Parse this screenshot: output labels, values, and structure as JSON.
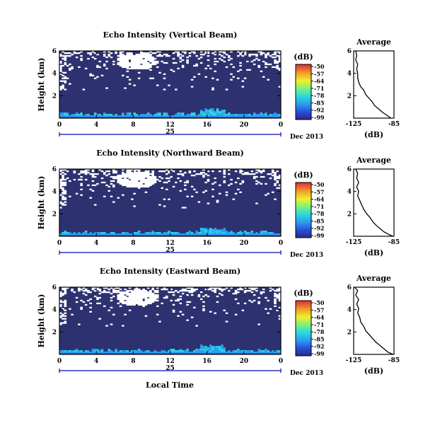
{
  "figure": {
    "xlabel": "Local Time",
    "avg_title": "Average",
    "avg_xlabel": "(dB)",
    "cb_unit": "(dB)",
    "date_day": "25",
    "date_label": "Dec 2013"
  },
  "chart_data": [
    {
      "type": "heatmap",
      "title": "Echo Intensity (Vertical Beam)",
      "xlabel": "Local Time",
      "ylabel": "Height (km)",
      "x_ticks": [
        "0",
        "4",
        "8",
        "12",
        "16",
        "20",
        "0"
      ],
      "y_ticks": [
        "6",
        "4",
        "2"
      ],
      "xlim": [
        0,
        24
      ],
      "ylim": [
        0,
        6
      ],
      "colorbar": {
        "unit": "(dB)",
        "ticks": [
          "-50",
          "-57",
          "-64",
          "-71",
          "-78",
          "-85",
          "-92",
          "-99"
        ],
        "range": [
          -99,
          -50
        ]
      },
      "date": {
        "day": "25",
        "label": "Dec 2013"
      },
      "average_profile": {
        "title": "Average",
        "xlabel": "(dB)",
        "x_ticks": [
          "-125",
          "-85"
        ],
        "y_ticks": [
          "6",
          "4",
          "2"
        ],
        "xlim": [
          -125,
          -85
        ],
        "ylim": [
          0,
          6
        ],
        "points": [
          [
            -123,
            6.0
          ],
          [
            -122,
            5.6
          ],
          [
            -123,
            5.2
          ],
          [
            -121,
            4.8
          ],
          [
            -122,
            4.4
          ],
          [
            -121,
            4.0
          ],
          [
            -121,
            3.6
          ],
          [
            -120,
            3.2
          ],
          [
            -118,
            2.8
          ],
          [
            -115,
            2.5
          ],
          [
            -113,
            2.1
          ],
          [
            -110,
            1.8
          ],
          [
            -107,
            1.5
          ],
          [
            -104,
            1.1
          ],
          [
            -100,
            0.8
          ],
          [
            -96,
            0.5
          ],
          [
            -92,
            0.25
          ],
          [
            -88,
            0.0
          ]
        ]
      }
    },
    {
      "type": "heatmap",
      "title": "Echo Intensity (Northward Beam)",
      "xlabel": "Local Time",
      "ylabel": "Height (km)",
      "x_ticks": [
        "0",
        "4",
        "8",
        "12",
        "16",
        "20",
        "0"
      ],
      "y_ticks": [
        "6",
        "4",
        "2"
      ],
      "xlim": [
        0,
        24
      ],
      "ylim": [
        0,
        6
      ],
      "colorbar": {
        "unit": "(dB)",
        "ticks": [
          "-50",
          "-57",
          "-64",
          "-71",
          "-78",
          "-85",
          "-92",
          "-99"
        ],
        "range": [
          -99,
          -50
        ]
      },
      "date": {
        "day": "25",
        "label": "Dec 2013"
      },
      "average_profile": {
        "title": "Average",
        "xlabel": "(dB)",
        "x_ticks": [
          "-125",
          "-85"
        ],
        "y_ticks": [
          "6",
          "4",
          "2"
        ],
        "xlim": [
          -125,
          -85
        ],
        "ylim": [
          0,
          6
        ],
        "points": [
          [
            -123,
            6.0
          ],
          [
            -121,
            5.6
          ],
          [
            -122,
            5.2
          ],
          [
            -120,
            4.8
          ],
          [
            -122,
            4.4
          ],
          [
            -120,
            4.0
          ],
          [
            -121,
            3.6
          ],
          [
            -119,
            3.2
          ],
          [
            -117,
            2.8
          ],
          [
            -115,
            2.4
          ],
          [
            -112,
            2.0
          ],
          [
            -109,
            1.7
          ],
          [
            -106,
            1.3
          ],
          [
            -103,
            1.0
          ],
          [
            -99,
            0.7
          ],
          [
            -95,
            0.4
          ],
          [
            -90,
            0.15
          ],
          [
            -86,
            0.0
          ]
        ]
      }
    },
    {
      "type": "heatmap",
      "title": "Echo Intensity (Eastward Beam)",
      "xlabel": "Local Time",
      "ylabel": "Height (km)",
      "x_ticks": [
        "0",
        "4",
        "8",
        "12",
        "16",
        "20",
        "0"
      ],
      "y_ticks": [
        "6",
        "4",
        "2"
      ],
      "xlim": [
        0,
        24
      ],
      "ylim": [
        0,
        6
      ],
      "colorbar": {
        "unit": "(dB)",
        "ticks": [
          "-50",
          "-57",
          "-64",
          "-71",
          "-78",
          "-85",
          "-92",
          "-99"
        ],
        "range": [
          -99,
          -50
        ]
      },
      "date": {
        "day": "25",
        "label": "Dec 2013"
      },
      "average_profile": {
        "title": "Average",
        "xlabel": "(dB)",
        "x_ticks": [
          "-125",
          "-85"
        ],
        "y_ticks": [
          "6",
          "4",
          "2"
        ],
        "xlim": [
          -125,
          -85
        ],
        "ylim": [
          0,
          6
        ],
        "points": [
          [
            -124,
            6.0
          ],
          [
            -121,
            5.7
          ],
          [
            -123,
            5.3
          ],
          [
            -120,
            4.9
          ],
          [
            -122,
            4.5
          ],
          [
            -120,
            4.1
          ],
          [
            -121,
            3.7
          ],
          [
            -119,
            3.3
          ],
          [
            -118,
            2.9
          ],
          [
            -115,
            2.5
          ],
          [
            -113,
            2.1
          ],
          [
            -110,
            1.8
          ],
          [
            -106,
            1.4
          ],
          [
            -103,
            1.1
          ],
          [
            -99,
            0.8
          ],
          [
            -95,
            0.5
          ],
          [
            -91,
            0.2
          ],
          [
            -86,
            0.0
          ]
        ]
      }
    }
  ]
}
